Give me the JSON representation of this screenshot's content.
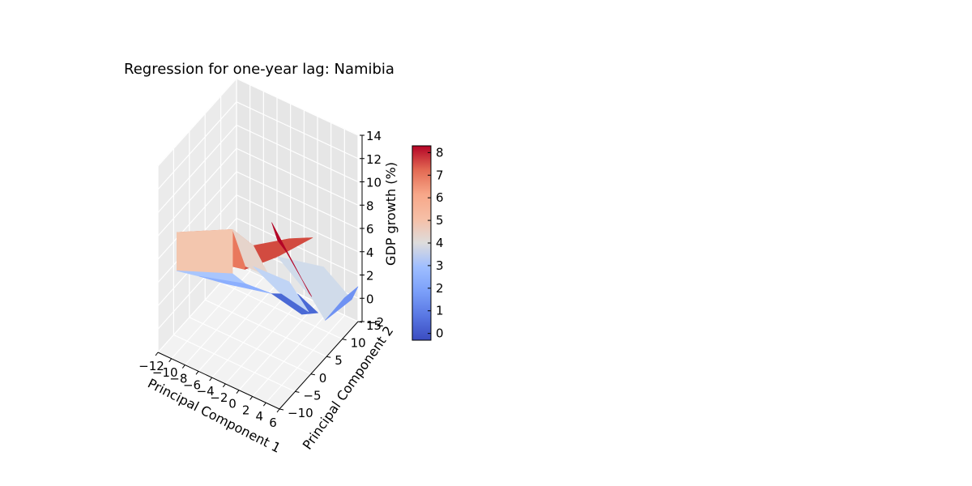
{
  "chart_data": {
    "type": "surface3d",
    "title": "Regression for one-year lag: Namibia",
    "xlabel": "Principal Component 1",
    "ylabel": "Principal Component 2",
    "zlabel": "GDP growth (%)",
    "x_ticks": [
      "−12",
      "−10",
      "−8",
      "−6",
      "−4",
      "−2",
      "0",
      "2",
      "4",
      "6"
    ],
    "y_ticks": [
      "−10",
      "−5",
      "0",
      "5",
      "10",
      "15"
    ],
    "z_ticks": [
      "−2",
      "0",
      "2",
      "4",
      "6",
      "8",
      "10",
      "12",
      "14"
    ],
    "xlim": [
      -12,
      6
    ],
    "ylim": [
      -10,
      15
    ],
    "zlim": [
      -2,
      14
    ],
    "colormap": "coolwarm",
    "colorbar": {
      "ticks": [
        "0",
        "1",
        "2",
        "3",
        "4",
        "5",
        "6",
        "7",
        "8"
      ],
      "range": [
        -0.3,
        8.3
      ]
    },
    "grid": true,
    "faces": [
      {
        "name": "upper-left-plateau",
        "value": 6.0,
        "color": "#e9785d",
        "pts": [
          [
            -12,
            -4,
            6.5
          ],
          [
            -8,
            -10,
            7.4
          ],
          [
            -1,
            -6,
            6.9
          ],
          [
            -3,
            1,
            6.3
          ],
          [
            -7,
            3,
            6.0
          ]
        ]
      },
      {
        "name": "left-wall",
        "value": 4.6,
        "color": "#f3c6ae",
        "pts": [
          [
            -12,
            -4,
            6.5
          ],
          [
            -7,
            3,
            6.0
          ],
          [
            -7,
            3,
            2.2
          ],
          [
            -12,
            -4,
            3.2
          ]
        ]
      },
      {
        "name": "mid-plateau",
        "value": 7.2,
        "color": "#d24b40",
        "pts": [
          [
            -3,
            1,
            6.3
          ],
          [
            -1,
            -6,
            6.9
          ],
          [
            2,
            -2,
            7.6
          ],
          [
            3,
            7,
            6.8
          ],
          [
            0,
            6,
            6.2
          ]
        ]
      },
      {
        "name": "center-left-facet",
        "value": 4.1,
        "color": "#e6d4cb",
        "pts": [
          [
            -7,
            3,
            6.0
          ],
          [
            -3,
            1,
            6.3
          ],
          [
            -2,
            4,
            3.0
          ],
          [
            -6,
            5,
            2.5
          ]
        ]
      },
      {
        "name": "light-blue-left-facet",
        "value": 2.4,
        "color": "#a9c6fd",
        "pts": [
          [
            -12,
            -4,
            3.2
          ],
          [
            -7,
            3,
            2.2
          ],
          [
            -6,
            5,
            1.0
          ],
          [
            -11,
            1,
            1.5
          ]
        ]
      },
      {
        "name": "lower-blue-facet",
        "value": 1.5,
        "color": "#8caffe",
        "pts": [
          [
            -11,
            1,
            1.5
          ],
          [
            -6,
            5,
            1.0
          ],
          [
            -4,
            9,
            -0.5
          ],
          [
            -9,
            5,
            0.2
          ]
        ]
      },
      {
        "name": "right-light-facet",
        "value": 3.6,
        "color": "#d0dbea",
        "pts": [
          [
            2,
            -2,
            7.6
          ],
          [
            6,
            4,
            6.0
          ],
          [
            6,
            13,
            0.5
          ],
          [
            3,
            11,
            -1.5
          ],
          [
            3,
            7,
            1.5
          ]
        ]
      },
      {
        "name": "bottom-facet",
        "value": 0.3,
        "color": "#4a69d5",
        "pts": [
          [
            -4,
            9,
            -0.5
          ],
          [
            0,
            10,
            -1.5
          ],
          [
            1,
            13,
            -2.0
          ],
          [
            -2,
            13,
            -1.2
          ]
        ]
      },
      {
        "name": "right-blue-facet",
        "value": 1.0,
        "color": "#6f92f3",
        "pts": [
          [
            3,
            11,
            -1.5
          ],
          [
            6,
            13,
            0.5
          ],
          [
            6,
            15,
            1.0
          ],
          [
            4,
            15,
            -0.5
          ]
        ]
      },
      {
        "name": "center-shard",
        "value": 2.9,
        "color": "#c0d4f5",
        "pts": [
          [
            -3,
            1,
            4.5
          ],
          [
            0,
            6,
            2.5
          ],
          [
            1,
            10,
            -1.0
          ],
          [
            -2,
            7,
            0.8
          ]
        ]
      },
      {
        "name": "red-spike",
        "value": 8.3,
        "color": "#b40426",
        "pts": [
          [
            1,
            11,
            0.0
          ],
          [
            2,
            8,
            1.5
          ],
          [
            3,
            -6,
            12.0
          ],
          [
            2,
            -2,
            9.0
          ],
          [
            1,
            3,
            6.2
          ]
        ]
      }
    ]
  }
}
